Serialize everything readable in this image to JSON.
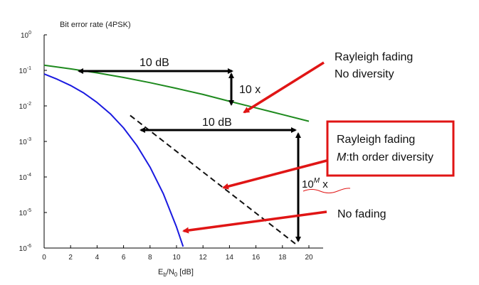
{
  "chart_data": {
    "type": "line",
    "ylabel": "Bit error rate (4PSK)",
    "xlabel_main": "E",
    "xlabel_sub1": "b",
    "xlabel_mid": "/N",
    "xlabel_sub2": "0",
    "xlabel_unit": " [dB]",
    "xlim": [
      0,
      21
    ],
    "ylim_log10": [
      -6,
      0
    ],
    "y_scale": "log",
    "x_ticks": [
      0,
      2,
      4,
      6,
      8,
      10,
      12,
      14,
      16,
      18,
      20
    ],
    "y_ticks": [
      {
        "base": "10",
        "exp": "0",
        "value": 0
      },
      {
        "base": "10",
        "exp": "-1",
        "value": -1
      },
      {
        "base": "10",
        "exp": "-2",
        "value": -2
      },
      {
        "base": "10",
        "exp": "-3",
        "value": -3
      },
      {
        "base": "10",
        "exp": "-4",
        "value": -4
      },
      {
        "base": "10",
        "exp": "-5",
        "value": -5
      },
      {
        "base": "10",
        "exp": "-6",
        "value": -6
      }
    ],
    "series": [
      {
        "key": "rayleigh_no_div",
        "color": "#1e8a1e",
        "style": "solid",
        "x": [
          0,
          2,
          4,
          6,
          8,
          10,
          12,
          14,
          16,
          18,
          20
        ],
        "y": [
          0.14,
          0.11,
          0.085,
          0.063,
          0.045,
          0.031,
          0.021,
          0.0135,
          0.0088,
          0.0057,
          0.0037
        ]
      },
      {
        "key": "no_fading",
        "color": "#1a1ae0",
        "style": "solid",
        "x": [
          0,
          1,
          2,
          3,
          4,
          5,
          6,
          7,
          8,
          9,
          10,
          10.5
        ],
        "y": [
          0.079,
          0.056,
          0.0375,
          0.023,
          0.0125,
          0.006,
          0.0024,
          0.00077,
          0.00019,
          3.4e-05,
          3.9e-06,
          1.1e-06
        ]
      },
      {
        "key": "rayleigh_div",
        "color": "#111111",
        "style": "dashed",
        "x": [
          6.5,
          19
        ],
        "y": [
          0.0054,
          1.3e-06
        ]
      }
    ],
    "annotations": {
      "label_rayleigh_nodiv_1": "Rayleigh fading",
      "label_rayleigh_nodiv_2": "No diversity",
      "label_rayleigh_div_1": "Rayleigh fading",
      "label_rayleigh_div_2_italic": "M",
      "label_rayleigh_div_2_rest": ":th order diversity",
      "label_no_fading": "No fading",
      "gap_top": "10 dB",
      "gap_mid": "10 dB",
      "ratio_top": "10 x",
      "ratio_bottom_base": "10",
      "ratio_bottom_exp": "M",
      "ratio_bottom_x": " x"
    },
    "grid": false
  },
  "colors": {
    "red_arrow": "#e01515",
    "box_border": "#e01515",
    "black_arrow": "#000000"
  }
}
